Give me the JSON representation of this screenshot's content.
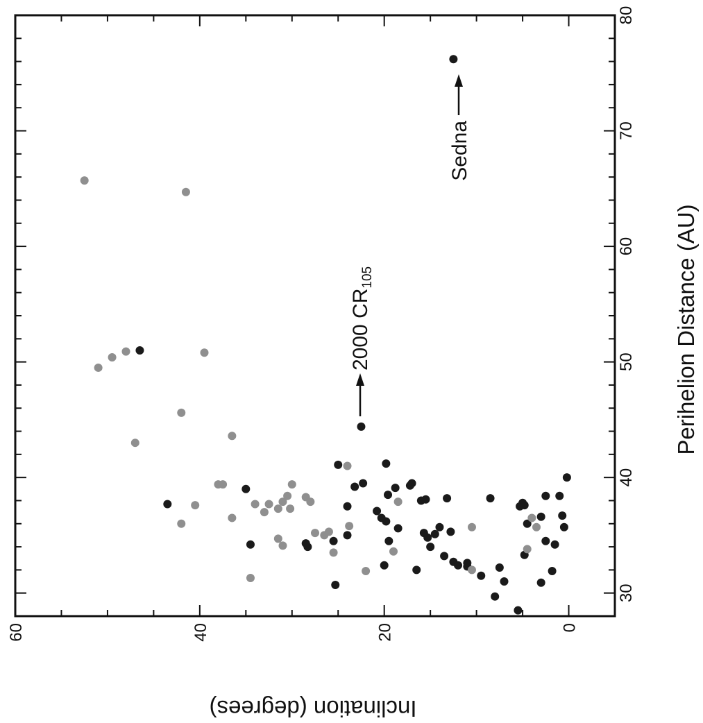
{
  "chart_data": {
    "type": "scatter",
    "title": "",
    "xlabel": "Inclination (degrees)",
    "ylabel": "Perihelion Distance (AU)",
    "xlim": [
      60,
      -5
    ],
    "ylim": [
      28,
      80
    ],
    "x_ticks": [
      60,
      40,
      20,
      0
    ],
    "y_ticks": [
      30,
      40,
      50,
      60,
      70,
      80
    ],
    "grid": false,
    "colors": {
      "dark": "#1a1a1a",
      "gray": "#8f8f8f"
    },
    "series": [
      {
        "color": "dark",
        "points": [
          [
            46.5,
            51.0
          ],
          [
            43.5,
            37.7
          ],
          [
            35.0,
            39.0
          ],
          [
            34.5,
            34.2
          ],
          [
            28.5,
            34.3
          ],
          [
            28.3,
            34.0
          ],
          [
            25.5,
            34.5
          ],
          [
            25.3,
            30.7
          ],
          [
            25.0,
            41.1
          ],
          [
            24.0,
            37.5
          ],
          [
            24.0,
            35.0
          ],
          [
            22.5,
            44.4
          ],
          [
            23.2,
            39.2
          ],
          [
            22.3,
            39.5
          ],
          [
            20.8,
            37.1
          ],
          [
            20.3,
            36.5
          ],
          [
            19.8,
            36.2
          ],
          [
            19.5,
            34.5
          ],
          [
            19.8,
            41.2
          ],
          [
            19.6,
            38.5
          ],
          [
            18.8,
            39.1
          ],
          [
            18.5,
            35.6
          ],
          [
            20.0,
            32.4
          ],
          [
            17.0,
            39.5
          ],
          [
            17.2,
            39.3
          ],
          [
            16.5,
            32.0
          ],
          [
            16.0,
            38.0
          ],
          [
            15.5,
            38.1
          ],
          [
            15.7,
            35.2
          ],
          [
            15.3,
            34.8
          ],
          [
            15.0,
            34.0
          ],
          [
            14.5,
            35.1
          ],
          [
            14.0,
            35.7
          ],
          [
            13.5,
            33.2
          ],
          [
            13.2,
            38.2
          ],
          [
            12.8,
            35.3
          ],
          [
            12.5,
            32.7
          ],
          [
            12.0,
            32.4
          ],
          [
            11.0,
            32.3
          ],
          [
            11.0,
            32.6
          ],
          [
            9.5,
            31.5
          ],
          [
            8.5,
            38.2
          ],
          [
            8.0,
            29.7
          ],
          [
            7.5,
            32.2
          ],
          [
            7.0,
            31.0
          ],
          [
            5.3,
            37.5
          ],
          [
            5.0,
            37.8
          ],
          [
            4.8,
            37.6
          ],
          [
            4.5,
            36.0
          ],
          [
            4.8,
            33.3
          ],
          [
            5.5,
            28.5
          ],
          [
            3.0,
            30.9
          ],
          [
            3.0,
            36.6
          ],
          [
            2.5,
            38.4
          ],
          [
            2.5,
            34.5
          ],
          [
            1.8,
            31.9
          ],
          [
            1.5,
            34.2
          ],
          [
            1.0,
            38.4
          ],
          [
            0.7,
            36.7
          ],
          [
            0.5,
            35.7
          ],
          [
            0.2,
            40.0
          ],
          [
            12.5,
            76.2
          ]
        ]
      },
      {
        "color": "gray",
        "points": [
          [
            52.5,
            65.7
          ],
          [
            51.0,
            49.5
          ],
          [
            49.5,
            50.4
          ],
          [
            48.0,
            50.9
          ],
          [
            47.0,
            43.0
          ],
          [
            42.0,
            45.6
          ],
          [
            41.5,
            64.7
          ],
          [
            40.5,
            37.6
          ],
          [
            42.0,
            36.0
          ],
          [
            39.5,
            50.8
          ],
          [
            38.0,
            39.4
          ],
          [
            37.5,
            39.4
          ],
          [
            36.5,
            43.6
          ],
          [
            36.5,
            36.5
          ],
          [
            34.5,
            31.3
          ],
          [
            34.0,
            37.7
          ],
          [
            33.0,
            37.0
          ],
          [
            32.5,
            37.7
          ],
          [
            31.5,
            37.3
          ],
          [
            31.0,
            37.9
          ],
          [
            30.5,
            38.4
          ],
          [
            30.0,
            39.4
          ],
          [
            30.2,
            37.3
          ],
          [
            31.5,
            34.7
          ],
          [
            31.0,
            34.1
          ],
          [
            28.5,
            38.3
          ],
          [
            28.0,
            37.9
          ],
          [
            27.5,
            35.2
          ],
          [
            26.5,
            35.0
          ],
          [
            26.0,
            35.3
          ],
          [
            25.5,
            33.5
          ],
          [
            24.0,
            41.0
          ],
          [
            23.8,
            35.8
          ],
          [
            22.0,
            31.9
          ],
          [
            19.0,
            33.6
          ],
          [
            18.5,
            37.9
          ],
          [
            10.5,
            35.7
          ],
          [
            10.5,
            32.0
          ],
          [
            4.0,
            36.5
          ],
          [
            4.5,
            33.8
          ],
          [
            3.5,
            35.7
          ]
        ]
      }
    ],
    "annotations": [
      {
        "text": "2000 CR",
        "subscript": "105"
      },
      {
        "text": "Sedna"
      }
    ]
  }
}
